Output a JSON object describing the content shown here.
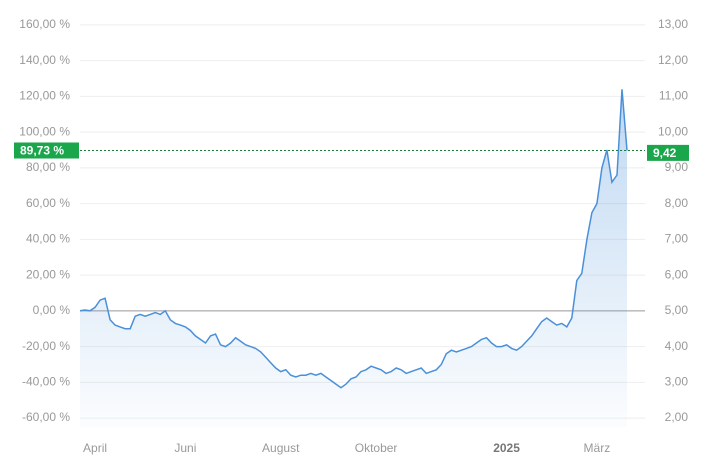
{
  "chart_data": {
    "type": "line",
    "categories": [
      null,
      null,
      null,
      "April",
      null,
      null,
      null,
      null,
      null,
      null,
      null,
      null,
      null,
      null,
      null,
      null,
      null,
      null,
      null,
      null,
      null,
      "Juni",
      null,
      null,
      null,
      null,
      null,
      null,
      null,
      null,
      null,
      null,
      null,
      null,
      null,
      null,
      null,
      null,
      null,
      null,
      "August",
      null,
      null,
      null,
      null,
      null,
      null,
      null,
      null,
      null,
      null,
      null,
      null,
      null,
      null,
      null,
      null,
      null,
      null,
      "Oktober",
      null,
      null,
      null,
      null,
      null,
      null,
      null,
      null,
      null,
      null,
      null,
      null,
      null,
      null,
      null,
      null,
      null,
      null,
      null,
      null,
      null,
      null,
      null,
      null,
      null,
      "2025",
      null,
      null,
      null,
      null,
      null,
      null,
      null,
      null,
      null,
      null,
      null,
      null,
      null,
      null,
      null,
      null,
      null,
      "März",
      null,
      null,
      null,
      null,
      null,
      null
    ],
    "series": [
      {
        "color": "#4a90d9",
        "values": [
          0,
          0.5,
          0,
          2,
          6,
          7,
          -5,
          -8,
          -9,
          -10,
          -10,
          -3,
          -2,
          -3,
          -2,
          -1,
          -2,
          0,
          -5,
          -7,
          -8,
          -9,
          -11,
          -14,
          -16,
          -18,
          -14,
          -13,
          -19,
          -20,
          -18,
          -15,
          -17,
          -19,
          -20,
          -21,
          -23,
          -26,
          -29,
          -32,
          -34,
          -33,
          -36,
          -37,
          -36,
          -36,
          -35,
          -36,
          -35,
          -37,
          -39,
          -41,
          -43,
          -41,
          -38,
          -37,
          -34,
          -33,
          -31,
          -32,
          -33,
          -35,
          -34,
          -32,
          -33,
          -35,
          -34,
          -33,
          -32,
          -35,
          -34,
          -33,
          -30,
          -24,
          -22,
          -23,
          -22,
          -21,
          -20,
          -18,
          -16,
          -15,
          -18,
          -20,
          -20,
          -19,
          -21,
          -22,
          -20,
          -17,
          -14,
          -10,
          -6,
          -4,
          -6,
          -8,
          -7,
          -9,
          -4,
          17,
          21,
          40,
          55,
          60,
          80,
          90,
          72,
          76,
          124,
          89.73
        ]
      }
    ],
    "ylim": [
      -65,
      165
    ],
    "yticks": [
      {
        "value": -60,
        "label": "-60,00 %"
      },
      {
        "value": -40,
        "label": "-40,00 %"
      },
      {
        "value": -20,
        "label": "-20,00 %"
      },
      {
        "value": 0,
        "label": "0,00 %"
      },
      {
        "value": 20,
        "label": "20,00 %"
      },
      {
        "value": 40,
        "label": "40,00 %"
      },
      {
        "value": 60,
        "label": "60,00 %"
      },
      {
        "value": 80,
        "label": "80,00 %"
      },
      {
        "value": 100,
        "label": "100,00 %"
      },
      {
        "value": 120,
        "label": "120,00 %"
      },
      {
        "value": 140,
        "label": "140,00 %"
      },
      {
        "value": 160,
        "label": "160,00 %"
      }
    ],
    "y2lim": [
      1.75,
      13.25
    ],
    "y2ticks": [
      {
        "value": 2,
        "label": "2,00"
      },
      {
        "value": 3,
        "label": "3,00"
      },
      {
        "value": 4,
        "label": "4,00"
      },
      {
        "value": 5,
        "label": "5,00"
      },
      {
        "value": 6,
        "label": "6,00"
      },
      {
        "value": 7,
        "label": "7,00"
      },
      {
        "value": 8,
        "label": "8,00"
      },
      {
        "value": 9,
        "label": "9,00"
      },
      {
        "value": 10,
        "label": "10,00"
      },
      {
        "value": 11,
        "label": "11,00"
      },
      {
        "value": 12,
        "label": "12,00"
      },
      {
        "value": 13,
        "label": "13,00"
      }
    ],
    "last_value": {
      "value": 89.73,
      "label": "89,73 %"
    },
    "last_price": {
      "value": 9.42,
      "label": "9,42"
    },
    "tag_color": "#1aa64a",
    "grid": true
  }
}
